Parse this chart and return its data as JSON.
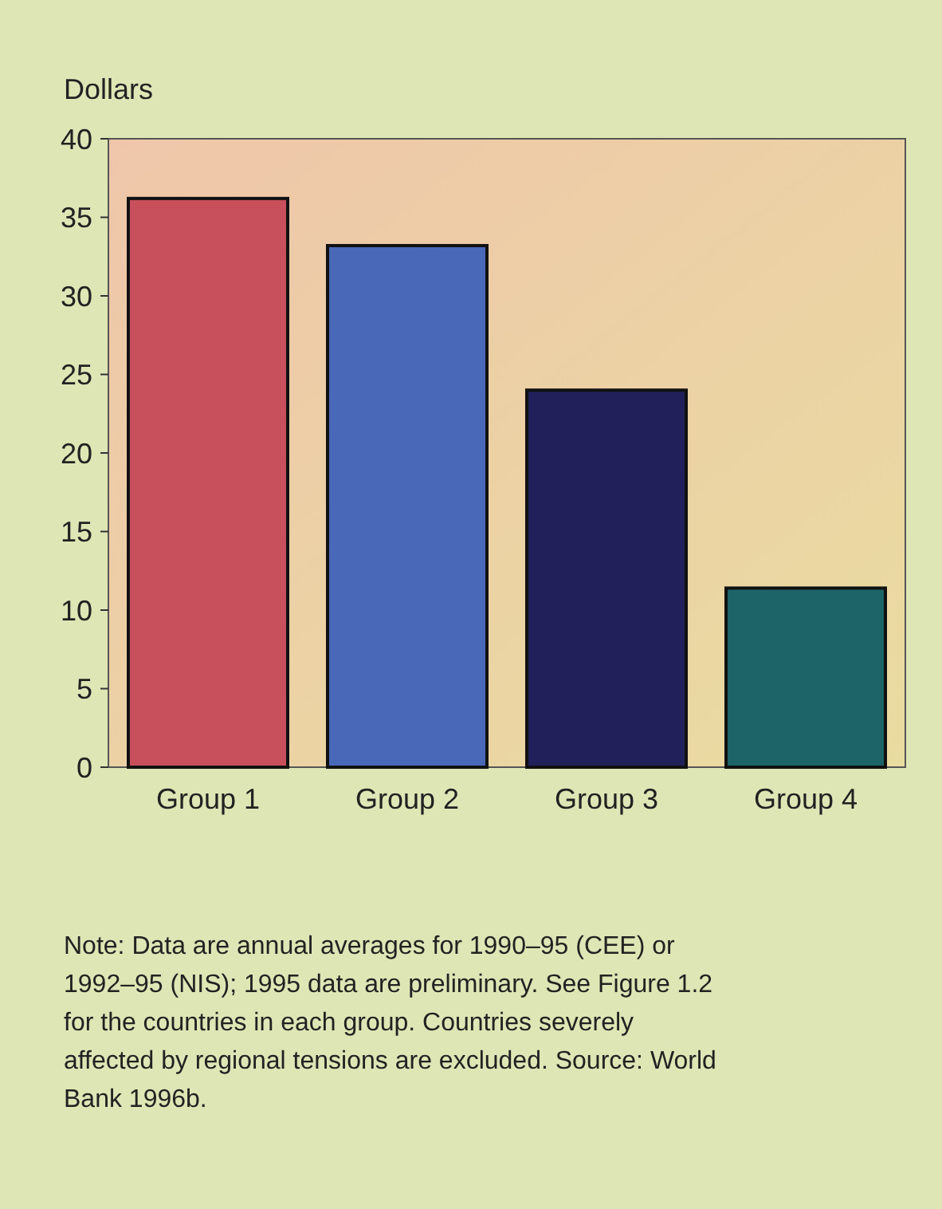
{
  "chart_data": {
    "type": "bar",
    "ylabel": "Dollars",
    "categories": [
      "Group 1",
      "Group 2",
      "Group 3",
      "Group 4"
    ],
    "values": [
      36.2,
      33.2,
      24,
      11.4
    ],
    "colors": [
      "#c8505c",
      "#4a68b8",
      "#22205a",
      "#1d6468"
    ],
    "ylim": [
      0,
      40
    ],
    "yticks": [
      0,
      5,
      10,
      15,
      20,
      25,
      30,
      35,
      40
    ],
    "grid": false,
    "annotations": [
      "Note:  Data are annual averages for 1990–95 (CEE) or 1992–95 (NIS); 1995 data are preliminary. See Figure 1.2 for the countries in each group. Countries severely affected by regional tensions are excluded. Source: World Bank 1996b."
    ]
  }
}
